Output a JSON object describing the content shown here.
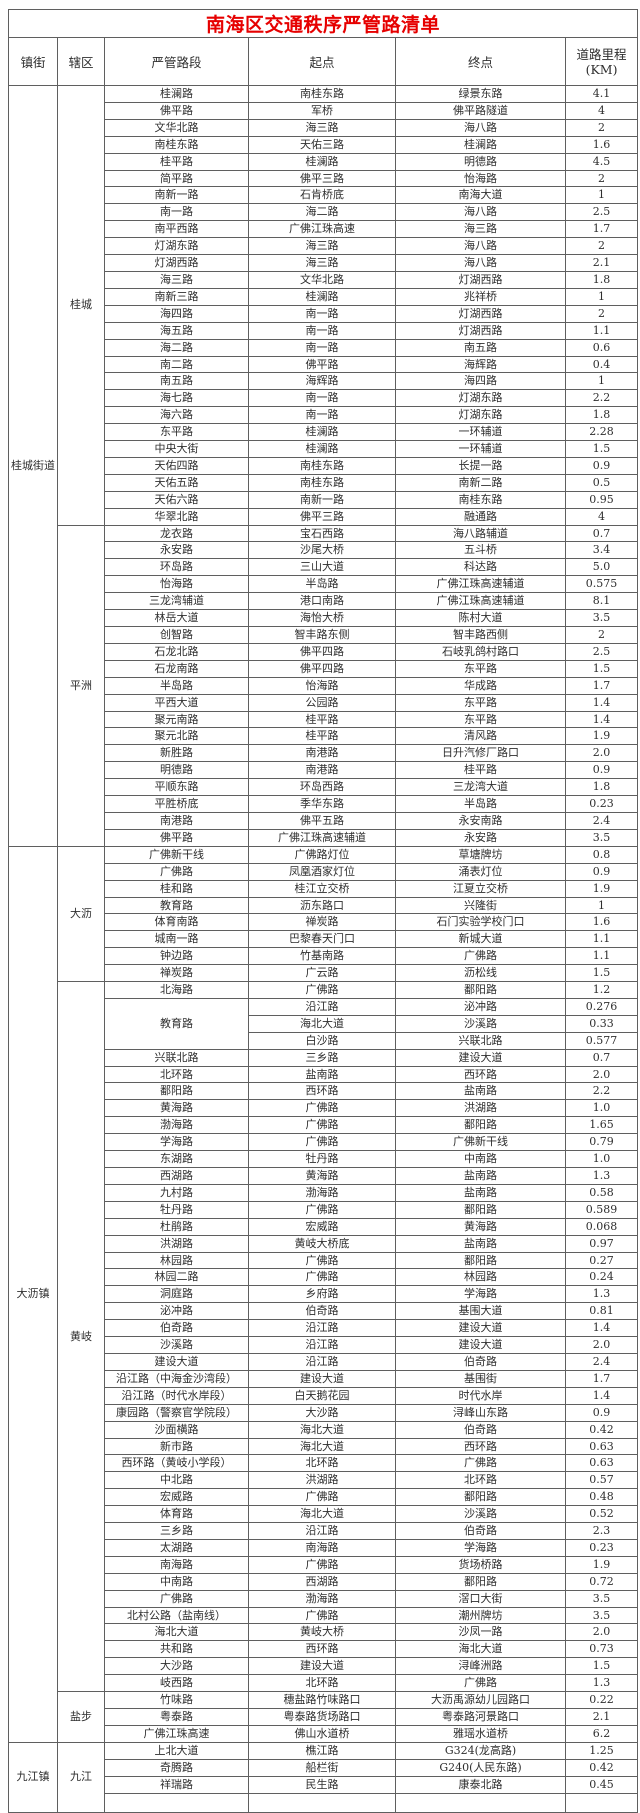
{
  "title": "南海区交通秩序严管路清单",
  "headers": {
    "town": "镇街",
    "district": "辖区",
    "road": "严管路段",
    "start": "起点",
    "end": "终点",
    "mileage_l1": "道路里程",
    "mileage_l2": "(KM)"
  },
  "towns": [
    {
      "name": "桂城街道",
      "districts": [
        {
          "name": "桂城",
          "rows": [
            [
              "桂澜路",
              "南桂东路",
              "绿景东路",
              "4.1"
            ],
            [
              "佛平路",
              "军桥",
              "佛平路隧道",
              "4"
            ],
            [
              "文华北路",
              "海三路",
              "海八路",
              "2"
            ],
            [
              "南桂东路",
              "天佑三路",
              "桂澜路",
              "1.6"
            ],
            [
              "桂平路",
              "桂澜路",
              "明德路",
              "4.5"
            ],
            [
              "简平路",
              "佛平三路",
              "怡海路",
              "2"
            ],
            [
              "南新一路",
              "石肯桥底",
              "南海大道",
              "1"
            ],
            [
              "南一路",
              "海二路",
              "海八路",
              "2.5"
            ],
            [
              "南平西路",
              "广佛江珠高速",
              "海三路",
              "1.7"
            ],
            [
              "灯湖东路",
              "海三路",
              "海八路",
              "2"
            ],
            [
              "灯湖西路",
              "海三路",
              "海八路",
              "2.1"
            ],
            [
              "海三路",
              "文华北路",
              "灯湖西路",
              "1.8"
            ],
            [
              "南新三路",
              "桂澜路",
              "兆祥桥",
              "1"
            ],
            [
              "海四路",
              "南一路",
              "灯湖西路",
              "2"
            ],
            [
              "海五路",
              "南一路",
              "灯湖西路",
              "1.1"
            ],
            [
              "海二路",
              "南一路",
              "南五路",
              "0.6"
            ],
            [
              "南二路",
              "佛平路",
              "海辉路",
              "0.4"
            ],
            [
              "南五路",
              "海辉路",
              "海四路",
              "1"
            ],
            [
              "海七路",
              "南一路",
              "灯湖东路",
              "2.2"
            ],
            [
              "海六路",
              "南一路",
              "灯湖东路",
              "1.8"
            ],
            [
              "东平路",
              "桂澜路",
              "一环辅道",
              "2.28"
            ],
            [
              "中央大街",
              "桂澜路",
              "一环辅道",
              "1.5"
            ],
            [
              "天佑四路",
              "南桂东路",
              "长提一路",
              "0.9"
            ],
            [
              "天佑五路",
              "南桂东路",
              "南新二路",
              "0.5"
            ],
            [
              "天佑六路",
              "南新一路",
              "南桂东路",
              "0.95"
            ],
            [
              "华翠北路",
              "佛平三路",
              "融通路",
              "4"
            ]
          ]
        },
        {
          "name": "平洲",
          "rows": [
            [
              "龙衣路",
              "宝石西路",
              "海八路辅道",
              "0.7"
            ],
            [
              "永安路",
              "沙尾大桥",
              "五斗桥",
              "3.4"
            ],
            [
              "环岛路",
              "三山大道",
              "科达路",
              "5.0"
            ],
            [
              "怡海路",
              "半岛路",
              "广佛江珠高速辅道",
              "0.575"
            ],
            [
              "三龙湾辅道",
              "港口南路",
              "广佛江珠高速辅道",
              "8.1"
            ],
            [
              "林岳大道",
              "海怡大桥",
              "陈村大道",
              "3.5"
            ],
            [
              "创智路",
              "智丰路东侧",
              "智丰路西侧",
              "2"
            ],
            [
              "石龙北路",
              "佛平四路",
              "石岐乳鸽村路口",
              "2.5"
            ],
            [
              "石龙南路",
              "佛平四路",
              "东平路",
              "1.5"
            ],
            [
              "半岛路",
              "怡海路",
              "华成路",
              "1.7"
            ],
            [
              "平西大道",
              "公园路",
              "东平路",
              "1.4"
            ],
            [
              "聚元南路",
              "桂平路",
              "东平路",
              "1.4"
            ],
            [
              "聚元北路",
              "桂平路",
              "清风路",
              "1.9"
            ],
            [
              "新胜路",
              "南港路",
              "日升汽修厂路口",
              "2.0"
            ],
            [
              "明德路",
              "南港路",
              "桂平路",
              "0.9"
            ],
            [
              "平顺东路",
              "环岛西路",
              "三龙湾大道",
              "1.8"
            ],
            [
              "平胜桥底",
              "季华东路",
              "半岛路",
              "0.23"
            ],
            [
              "南港路",
              "佛平五路",
              "永安南路",
              "2.4"
            ],
            [
              "佛平路",
              "广佛江珠高速辅道",
              "永安路",
              "3.5"
            ]
          ]
        }
      ]
    },
    {
      "name": "大沥镇",
      "districts": [
        {
          "name": "大沥",
          "rows": [
            [
              "广佛新干线",
              "广佛路灯位",
              "草塘牌坊",
              "0.8"
            ],
            [
              "广佛路",
              "凤凰酒家灯位",
              "涌表灯位",
              "0.9"
            ],
            [
              "桂和路",
              "桂江立交桥",
              "江夏立交桥",
              "1.9"
            ],
            [
              "教育路",
              "沥东路口",
              "兴隆街",
              "1"
            ],
            [
              "体育南路",
              "禅炭路",
              "石门实验学校门口",
              "1.6"
            ],
            [
              "城南一路",
              "巴黎春天门口",
              "新城大道",
              "1.1"
            ],
            [
              "钟边路",
              "竹基南路",
              "广佛路",
              "1.1"
            ],
            [
              "禅炭路",
              "广云路",
              "沥松线",
              "1.5"
            ]
          ]
        },
        {
          "name": "黄岐",
          "rows": [
            [
              "北海路",
              "广佛路",
              "鄱阳路",
              "1.2"
            ],
            {
              "road": "教育路",
              "span": 3,
              "subrows": [
                [
                  "沿江路",
                  "泌冲路",
                  "0.276"
                ],
                [
                  "海北大道",
                  "沙溪路",
                  "0.33"
                ],
                [
                  "白沙路",
                  "兴联北路",
                  "0.577"
                ]
              ]
            },
            [
              "兴联北路",
              "三乡路",
              "建设大道",
              "0.7"
            ],
            [
              "北环路",
              "盐南路",
              "西环路",
              "2.0"
            ],
            [
              "鄱阳路",
              "西环路",
              "盐南路",
              "2.2"
            ],
            [
              "黄海路",
              "广佛路",
              "洪湖路",
              "1.0"
            ],
            [
              "渤海路",
              "广佛路",
              "鄱阳路",
              "1.65"
            ],
            [
              "学海路",
              "广佛路",
              "广佛新干线",
              "0.79"
            ],
            [
              "东湖路",
              "牡丹路",
              "中南路",
              "1.0"
            ],
            [
              "西湖路",
              "黄海路",
              "盐南路",
              "1.3"
            ],
            [
              "九村路",
              "渤海路",
              "盐南路",
              "0.58"
            ],
            [
              "牡丹路",
              "广佛路",
              "鄱阳路",
              "0.589"
            ],
            [
              "杜鹃路",
              "宏威路",
              "黄海路",
              "0.068"
            ],
            [
              "洪湖路",
              "黄岐大桥底",
              "盐南路",
              "0.97"
            ],
            [
              "林园路",
              "广佛路",
              "鄱阳路",
              "0.27"
            ],
            [
              "林园二路",
              "广佛路",
              "林园路",
              "0.24"
            ],
            [
              "洞庭路",
              "乡府路",
              "学海路",
              "1.3"
            ],
            [
              "泌冲路",
              "伯奇路",
              "基围大道",
              "0.81"
            ],
            [
              "伯奇路",
              "沿江路",
              "建设大道",
              "1.4"
            ],
            [
              "沙溪路",
              "沿江路",
              "建设大道",
              "2.0"
            ],
            [
              "建设大道",
              "沿江路",
              "伯奇路",
              "2.4"
            ],
            [
              "沿江路（中海金沙湾段）",
              "建设大道",
              "基围街",
              "1.7"
            ],
            [
              "沿江路（时代水岸段）",
              "白天鹅花园",
              "时代水岸",
              "1.4"
            ],
            [
              "康园路（警察官学院段）",
              "大沙路",
              "浔峰山东路",
              "0.9"
            ],
            [
              "沙面横路",
              "海北大道",
              "伯奇路",
              "0.42"
            ],
            [
              "新市路",
              "海北大道",
              "西环路",
              "0.63"
            ],
            [
              "西环路（黄岐小学段）",
              "北环路",
              "广佛路",
              "0.63"
            ],
            [
              "中北路",
              "洪湖路",
              "北环路",
              "0.57"
            ],
            [
              "宏威路",
              "广佛路",
              "鄱阳路",
              "0.48"
            ],
            [
              "体育路",
              "海北大道",
              "沙溪路",
              "0.52"
            ],
            [
              "三乡路",
              "沿江路",
              "伯奇路",
              "2.3"
            ],
            [
              "太湖路",
              "南海路",
              "学海路",
              "0.23"
            ],
            [
              "南海路",
              "广佛路",
              "货场桥路",
              "1.9"
            ],
            [
              "中南路",
              "西湖路",
              "鄱阳路",
              "0.72"
            ],
            [
              "广佛路",
              "渤海路",
              "滘口大街",
              "3.5"
            ],
            [
              "北村公路（盐南线）",
              "广佛路",
              "潮州牌坊",
              "3.5"
            ],
            [
              "海北大道",
              "黄岐大桥",
              "沙凤一路",
              "2.0"
            ],
            [
              "共和路",
              "西环路",
              "海北大道",
              "0.73"
            ],
            [
              "大沙路",
              "建设大道",
              "浔峰洲路",
              "1.5"
            ],
            [
              "岐西路",
              "北环路",
              "广佛路",
              "1.3"
            ]
          ]
        },
        {
          "name": "盐步",
          "rows": [
            [
              "竹味路",
              "穗盐路竹味路口",
              "大沥禹源幼儿园路口",
              "0.22"
            ],
            [
              "粤泰路",
              "粤泰路货场路口",
              "粤泰路河景路口",
              "2.1"
            ],
            [
              "广佛江珠高速",
              "佛山水道桥",
              "雅瑶水道桥",
              "6.2"
            ]
          ]
        }
      ]
    },
    {
      "name": "九江镇",
      "districts": [
        {
          "name": "九江",
          "rows": [
            [
              "上北大道",
              "樵江路",
              "G324(龙高路)",
              "1.25"
            ],
            [
              "奇腾路",
              "船栏街",
              "G240(人民东路)",
              "0.42"
            ],
            [
              "祥瑞路",
              "民生路",
              "康泰北路",
              "0.45"
            ],
            [
              "",
              "",
              "",
              ""
            ]
          ]
        }
      ]
    }
  ]
}
